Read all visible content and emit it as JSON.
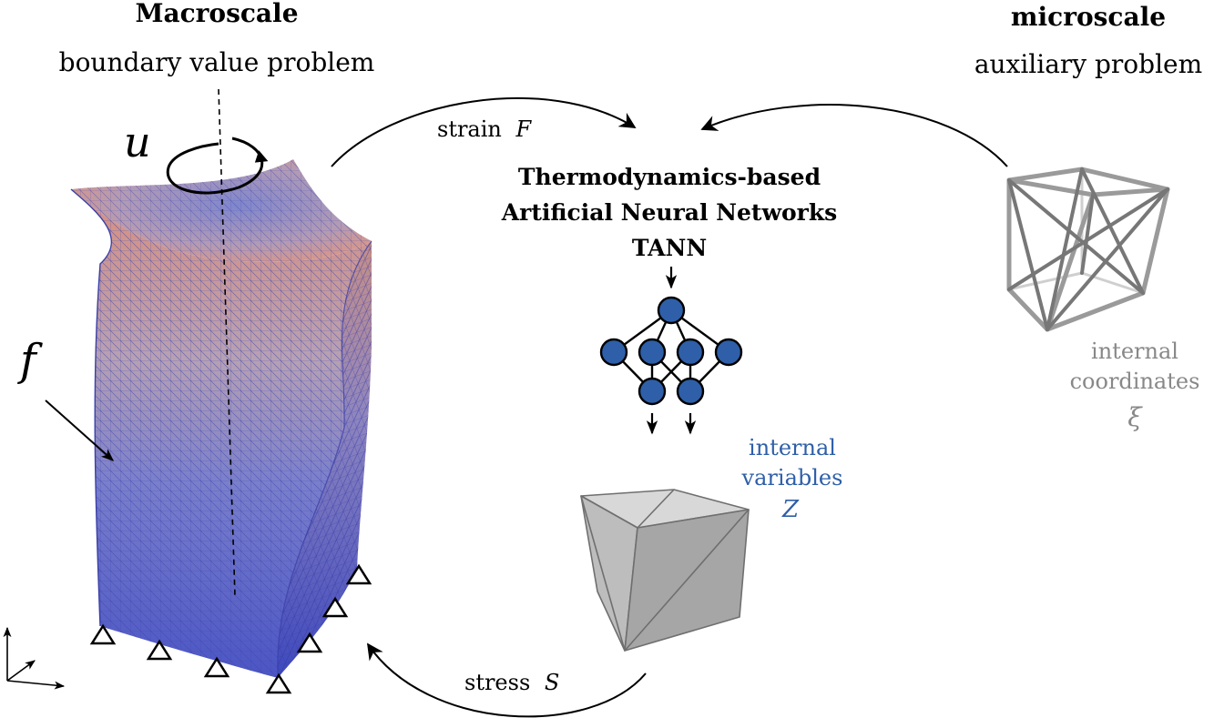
{
  "macro": {
    "title": "Macroscale",
    "subtitle": "boundary value problem",
    "displacement_symbol": "u",
    "force_symbol": "f"
  },
  "micro": {
    "title": "microscale",
    "subtitle": "auxiliary problem",
    "coords_line1": "internal",
    "coords_line2": "coordinates",
    "coords_symbol": "ξ"
  },
  "center": {
    "strain_text": "strain",
    "strain_symbol": "F",
    "title_line1": "Thermodynamics-based",
    "title_line2": "Artificial Neural Networks",
    "title_line3": "TANN",
    "stress_text": "stress",
    "stress_symbol": "S",
    "iv_line1": "internal",
    "iv_line2": "variables",
    "iv_symbol": "Z"
  },
  "colors": {
    "ink": "#000000",
    "accent_blue": "#2e5fa8",
    "grey_text": "#888888",
    "mesh_blue": "#5865c0",
    "mesh_red": "#d48a78",
    "cube_grey": "#a9a9a9"
  }
}
